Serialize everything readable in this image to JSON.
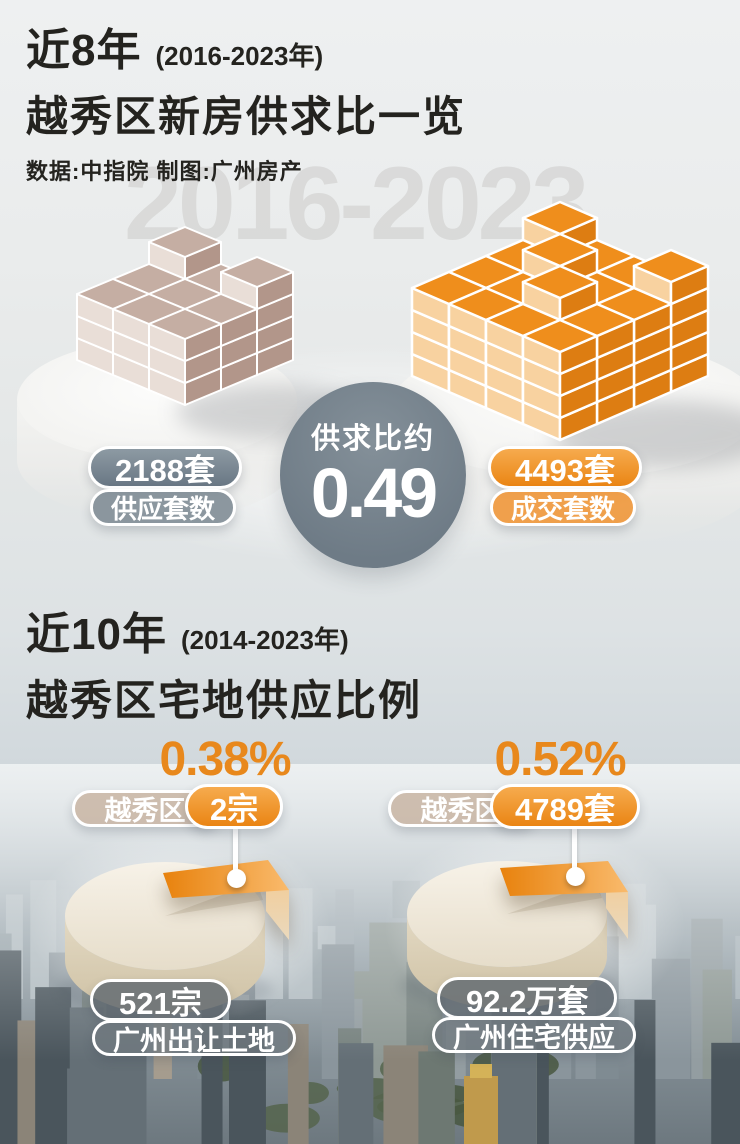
{
  "section1": {
    "title_prefix": "近8年",
    "title_period": "(2016-2023年)",
    "title_main": "越秀区新房供求比一览",
    "credits": "数据:中指院  制图:广州房产",
    "watermark": "2016-2023",
    "ratio_label": "供求比约",
    "ratio_value": "0.49",
    "supply_value": "2188套",
    "supply_label": "供应套数",
    "deal_value": "4493套",
    "deal_label": "成交套数"
  },
  "section2": {
    "title_prefix": "近10年",
    "title_period": "(2014-2023年)",
    "title_main": "越秀区宅地供应比例",
    "left": {
      "percent": "0.38%",
      "region_label": "越秀区",
      "region_value": "2宗",
      "city_value": "521宗",
      "city_label": "广州出让土地"
    },
    "right": {
      "percent": "0.52%",
      "region_label": "越秀区",
      "region_value": "4789套",
      "city_value": "92.2万套",
      "city_label": "广州住宅供应"
    }
  },
  "palette": {
    "accent_orange": "#ee8c1c",
    "accent_slate": "#76838e",
    "percent_orange": "#e8881c",
    "cream_pie": "#efe8da",
    "brick_orange": {
      "top": "#ef8e1c",
      "left": "#f8d2a0",
      "right": "#dd7d12"
    },
    "brick_taupe": {
      "top": "#c5aea3",
      "left": "#e9ded7",
      "right": "#b2968a"
    }
  },
  "chart_data": [
    {
      "type": "pictorial-comparison",
      "title": "近8年(2016-2023年)越秀区新房供求比一览",
      "source": "中指院",
      "series": [
        {
          "name": "供应套数",
          "value": 2188,
          "unit": "套"
        },
        {
          "name": "成交套数",
          "value": 4493,
          "unit": "套"
        }
      ],
      "ratio_label": "供求比约",
      "ratio_value": 0.49
    },
    {
      "type": "pie",
      "title": "近10年(2014-2023年)越秀区宅地供应比例",
      "charts": [
        {
          "name": "广州出让土地",
          "total": 521,
          "unit": "宗",
          "highlight": {
            "name": "越秀区",
            "value": 2,
            "percent": 0.38
          }
        },
        {
          "name": "广州住宅供应",
          "total": 922000,
          "total_label": "92.2万套",
          "unit": "套",
          "highlight": {
            "name": "越秀区",
            "value": 4789,
            "percent": 0.52
          }
        }
      ],
      "legend_position": "above",
      "grid": false
    }
  ]
}
